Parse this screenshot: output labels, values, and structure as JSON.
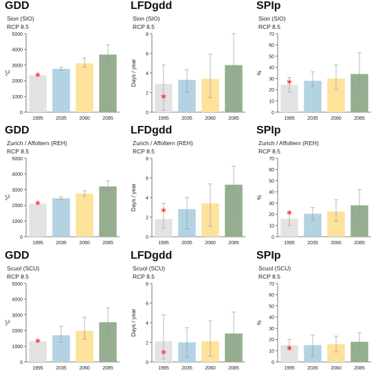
{
  "colors": {
    "bars": [
      "#e3e3e3",
      "#b3d3e2",
      "#fde29b",
      "#95ae8f"
    ],
    "error": "#9a9a9a",
    "marker": "#ff2020",
    "axis": "#555555"
  },
  "chart_data": [
    {
      "type": "bar",
      "title": "GDD",
      "subtitle": [
        "Sion (SIO)",
        "RCP 8.5"
      ],
      "ylabel": "°C",
      "ylim": [
        0,
        5000
      ],
      "yticks": [
        "0",
        "1000",
        "2000",
        "3000",
        "4000",
        "5000"
      ],
      "categories": [
        "1995",
        "2035",
        "2060",
        "2085"
      ],
      "values": [
        2350,
        2760,
        3110,
        3670
      ],
      "err_low": [
        2350,
        2660,
        2870,
        3140
      ],
      "err_high": [
        2350,
        2860,
        3450,
        4300
      ],
      "observed": 2380
    },
    {
      "type": "bar",
      "title": "LFDgdd",
      "subtitle": [
        "Sion (SIO)",
        "RCP 8.5"
      ],
      "ylabel": "Days / year",
      "ylim": [
        0,
        8
      ],
      "yticks": [
        "0",
        "2",
        "4",
        "6",
        "8"
      ],
      "categories": [
        "1995",
        "2035",
        "2060",
        "2085"
      ],
      "values": [
        2.9,
        3.3,
        3.4,
        4.8
      ],
      "err_low": [
        0.2,
        2.0,
        1.5,
        1.2
      ],
      "err_high": [
        4.8,
        4.3,
        5.9,
        8.0
      ],
      "observed": 1.6
    },
    {
      "type": "bar",
      "title": "SPIp",
      "subtitle": [
        "Sion (SIO)",
        "RCP 8.5"
      ],
      "ylabel": "%",
      "ylim": [
        0,
        70
      ],
      "yticks": [
        "0",
        "10",
        "20",
        "30",
        "40",
        "50",
        "60",
        "70"
      ],
      "categories": [
        "1995",
        "2035",
        "2060",
        "2085"
      ],
      "values": [
        24.5,
        28,
        30,
        34
      ],
      "err_low": [
        18,
        23,
        20,
        18
      ],
      "err_high": [
        31,
        36,
        42,
        53
      ],
      "observed": 27
    },
    {
      "type": "bar",
      "title": "GDD",
      "subtitle": [
        "Zurich / Affoltern (REH)",
        "RCP 8.5"
      ],
      "ylabel": "°C",
      "ylim": [
        0,
        5000
      ],
      "yticks": [
        "0",
        "1000",
        "2000",
        "3000",
        "4000",
        "5000"
      ],
      "categories": [
        "1995",
        "2035",
        "2060",
        "2085"
      ],
      "values": [
        2100,
        2450,
        2750,
        3200
      ],
      "err_low": [
        2100,
        2370,
        2580,
        2900
      ],
      "err_high": [
        2100,
        2550,
        2930,
        3550
      ],
      "observed": 2150
    },
    {
      "type": "bar",
      "title": "LFDgdd",
      "subtitle": [
        "Zurich / Affoltern (REH)",
        "RCP 8.5"
      ],
      "ylabel": "Days / year",
      "ylim": [
        0,
        8
      ],
      "yticks": [
        "0",
        "2",
        "4",
        "6",
        "8"
      ],
      "categories": [
        "1995",
        "2035",
        "2060",
        "2085"
      ],
      "values": [
        1.8,
        2.8,
        3.4,
        5.3
      ],
      "err_low": [
        0.9,
        0.8,
        1.1,
        2.8
      ],
      "err_high": [
        3.4,
        4.0,
        5.4,
        7.2
      ],
      "observed": 2.7
    },
    {
      "type": "bar",
      "title": "SPIp",
      "subtitle": [
        "Zurich / Affoltern (REH)",
        "RCP 8.5"
      ],
      "ylabel": "%",
      "ylim": [
        0,
        70
      ],
      "yticks": [
        "0",
        "10",
        "20",
        "30",
        "40",
        "50",
        "60",
        "70"
      ],
      "categories": [
        "1995",
        "2035",
        "2060",
        "2085"
      ],
      "values": [
        16,
        20.5,
        22.5,
        28
      ],
      "err_low": [
        10,
        15,
        14,
        15
      ],
      "err_high": [
        21,
        26,
        33,
        42
      ],
      "observed": 21.5
    },
    {
      "type": "bar",
      "title": "GDD",
      "subtitle": [
        "Scuol (SCU)",
        "RCP 8.5"
      ],
      "ylabel": "°C",
      "ylim": [
        0,
        5000
      ],
      "yticks": [
        "0",
        "1000",
        "2000",
        "3000",
        "4000",
        "5000"
      ],
      "categories": [
        "1995",
        "2035",
        "2060",
        "2085"
      ],
      "values": [
        1330,
        1700,
        1990,
        2530
      ],
      "err_low": [
        1330,
        1250,
        1450,
        1850
      ],
      "err_high": [
        1330,
        2280,
        2850,
        3450
      ],
      "observed": 1350
    },
    {
      "type": "bar",
      "title": "LFDgdd",
      "subtitle": [
        "Scuol (SCU)",
        "RCP 8.5"
      ],
      "ylabel": "Days / year",
      "ylim": [
        0,
        8
      ],
      "yticks": [
        "0",
        "2",
        "4",
        "6",
        "8"
      ],
      "categories": [
        "1995",
        "2035",
        "2060",
        "2085"
      ],
      "values": [
        2.1,
        2.0,
        2.1,
        2.9
      ],
      "err_low": [
        0.3,
        0.5,
        0.6,
        0.5
      ],
      "err_high": [
        4.8,
        3.5,
        4.2,
        5.1
      ],
      "observed": 1.0
    },
    {
      "type": "bar",
      "title": "SPIp",
      "subtitle": [
        "Scuol (SCU)",
        "RCP 8.5"
      ],
      "ylabel": "%",
      "ylim": [
        0,
        70
      ],
      "yticks": [
        "0",
        "10",
        "20",
        "30",
        "40",
        "50",
        "60",
        "70"
      ],
      "categories": [
        "1995",
        "2035",
        "2060",
        "2085"
      ],
      "values": [
        15,
        15,
        16,
        18
      ],
      "err_low": [
        11,
        5,
        9,
        10
      ],
      "err_high": [
        20,
        24,
        23,
        26
      ],
      "observed": 12.5
    }
  ]
}
